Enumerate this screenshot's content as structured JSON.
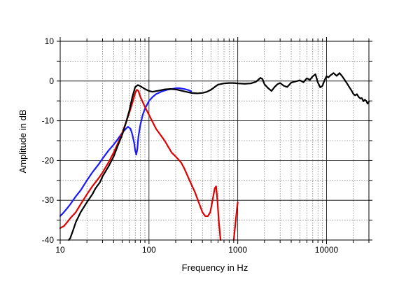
{
  "chart_data": {
    "type": "line",
    "title": "",
    "xlabel": "Frequency in Hz",
    "ylabel": "Amplitude in dB",
    "x_scale": "log",
    "xlim": [
      10,
      30000
    ],
    "ylim": [
      -40,
      10
    ],
    "grid": true,
    "legend": "none",
    "x_ticks": [
      10,
      100,
      1000,
      10000
    ],
    "x_tick_labels": [
      "10",
      "100",
      "1000",
      "10000"
    ],
    "y_ticks": [
      10,
      0,
      -10,
      -20,
      -30,
      -40
    ],
    "y_tick_labels": [
      "10",
      "0",
      "-10",
      "-20",
      "-30",
      "-40"
    ],
    "series": [
      {
        "color": "#1a1aff",
        "points": [
          [
            10,
            -34
          ],
          [
            11,
            -33
          ],
          [
            12,
            -32
          ],
          [
            13,
            -31
          ],
          [
            15,
            -29
          ],
          [
            17,
            -27.5
          ],
          [
            20,
            -25
          ],
          [
            23,
            -23
          ],
          [
            27,
            -21
          ],
          [
            30,
            -19.5
          ],
          [
            35,
            -17.5
          ],
          [
            40,
            -16
          ],
          [
            45,
            -14.5
          ],
          [
            50,
            -13
          ],
          [
            55,
            -12
          ],
          [
            58,
            -11.5
          ],
          [
            62,
            -12
          ],
          [
            65,
            -13.5
          ],
          [
            68,
            -15.5
          ],
          [
            70,
            -17.5
          ],
          [
            72,
            -18.5
          ],
          [
            74,
            -17
          ],
          [
            76,
            -14
          ],
          [
            80,
            -11
          ],
          [
            85,
            -8.5
          ],
          [
            90,
            -7
          ],
          [
            100,
            -5
          ],
          [
            110,
            -4
          ],
          [
            120,
            -3.3
          ],
          [
            140,
            -2.6
          ],
          [
            160,
            -2.2
          ],
          [
            180,
            -2
          ],
          [
            200,
            -1.8
          ],
          [
            220,
            -1.8
          ],
          [
            250,
            -2
          ],
          [
            280,
            -2.3
          ],
          [
            300,
            -2.6
          ]
        ]
      },
      {
        "color": "#e00000",
        "points": [
          [
            10,
            -37
          ],
          [
            11,
            -36.5
          ],
          [
            12,
            -35.5
          ],
          [
            13,
            -34.5
          ],
          [
            15,
            -33
          ],
          [
            17,
            -31
          ],
          [
            20,
            -28.5
          ],
          [
            23,
            -26.5
          ],
          [
            27,
            -24.5
          ],
          [
            30,
            -23
          ],
          [
            35,
            -20.5
          ],
          [
            40,
            -18
          ],
          [
            45,
            -15.5
          ],
          [
            50,
            -13
          ],
          [
            55,
            -10.5
          ],
          [
            60,
            -8
          ],
          [
            65,
            -5.5
          ],
          [
            70,
            -3
          ],
          [
            73,
            -2.2
          ],
          [
            76,
            -2.5
          ],
          [
            80,
            -4
          ],
          [
            90,
            -6.5
          ],
          [
            100,
            -8.5
          ],
          [
            120,
            -12
          ],
          [
            150,
            -15
          ],
          [
            180,
            -18
          ],
          [
            200,
            -19
          ],
          [
            230,
            -20.5
          ],
          [
            250,
            -22
          ],
          [
            280,
            -24.5
          ],
          [
            300,
            -26
          ],
          [
            330,
            -28
          ],
          [
            370,
            -31
          ],
          [
            400,
            -33
          ],
          [
            430,
            -34
          ],
          [
            460,
            -34
          ],
          [
            490,
            -33
          ],
          [
            520,
            -30
          ],
          [
            550,
            -27
          ],
          [
            570,
            -26.5
          ],
          [
            590,
            -30
          ],
          [
            610,
            -35
          ],
          [
            640,
            -40
          ]
        ]
      },
      {
        "color": "#e00000",
        "points": [
          [
            900,
            -40
          ],
          [
            940,
            -36
          ],
          [
            980,
            -32
          ],
          [
            1000,
            -30.5
          ]
        ]
      },
      {
        "color": "#000000",
        "points": [
          [
            12.5,
            -40
          ],
          [
            13,
            -39.5
          ],
          [
            14,
            -37.5
          ],
          [
            15,
            -35.5
          ],
          [
            17,
            -33
          ],
          [
            20,
            -30.5
          ],
          [
            23,
            -28.5
          ],
          [
            25,
            -27
          ],
          [
            28,
            -25.5
          ],
          [
            30,
            -24
          ],
          [
            35,
            -21.5
          ],
          [
            40,
            -19
          ],
          [
            45,
            -16
          ],
          [
            50,
            -13.5
          ],
          [
            55,
            -10.5
          ],
          [
            60,
            -7.5
          ],
          [
            65,
            -4
          ],
          [
            70,
            -1.5
          ],
          [
            75,
            -1
          ],
          [
            80,
            -1.3
          ],
          [
            90,
            -2
          ],
          [
            100,
            -2.5
          ],
          [
            110,
            -2.7
          ],
          [
            130,
            -2.4
          ],
          [
            150,
            -2.1
          ],
          [
            170,
            -2
          ],
          [
            200,
            -2.1
          ],
          [
            250,
            -2.6
          ],
          [
            300,
            -3
          ],
          [
            350,
            -3.1
          ],
          [
            400,
            -3
          ],
          [
            450,
            -2.7
          ],
          [
            500,
            -2.2
          ],
          [
            550,
            -1.5
          ],
          [
            600,
            -0.9
          ],
          [
            700,
            -0.6
          ],
          [
            800,
            -0.5
          ],
          [
            900,
            -0.5
          ],
          [
            1000,
            -0.6
          ],
          [
            1200,
            -0.7
          ],
          [
            1400,
            -0.6
          ],
          [
            1600,
            -0.2
          ],
          [
            1800,
            0.8
          ],
          [
            1900,
            0.5
          ],
          [
            2000,
            -0.8
          ],
          [
            2200,
            -1.8
          ],
          [
            2400,
            -2.5
          ],
          [
            2600,
            -1.5
          ],
          [
            2800,
            -0.8
          ],
          [
            3000,
            -0.5
          ],
          [
            3300,
            -1.2
          ],
          [
            3600,
            -1.5
          ],
          [
            4000,
            -0.4
          ],
          [
            4500,
            -0.1
          ],
          [
            5000,
            0.2
          ],
          [
            5500,
            -0.3
          ],
          [
            6000,
            0.7
          ],
          [
            6500,
            0.3
          ],
          [
            7000,
            1.2
          ],
          [
            7500,
            1.7
          ],
          [
            8000,
            -0.4
          ],
          [
            8500,
            -1.6
          ],
          [
            9000,
            -1.2
          ],
          [
            9500,
            0.2
          ],
          [
            10000,
            1.2
          ],
          [
            10500,
            0.9
          ],
          [
            11000,
            1.4
          ],
          [
            12000,
            2
          ],
          [
            13000,
            1.3
          ],
          [
            14000,
            2
          ],
          [
            15000,
            1.2
          ],
          [
            16000,
            0.3
          ],
          [
            17000,
            -0.6
          ],
          [
            18000,
            -1.5
          ],
          [
            19000,
            -2.3
          ],
          [
            20000,
            -3.2
          ],
          [
            21000,
            -3.6
          ],
          [
            22000,
            -3.3
          ],
          [
            23000,
            -4
          ],
          [
            24000,
            -4.4
          ],
          [
            25000,
            -4.3
          ],
          [
            26000,
            -5.1
          ],
          [
            27000,
            -4.7
          ],
          [
            28000,
            -5
          ],
          [
            29000,
            -5.7
          ],
          [
            30000,
            -5.2
          ]
        ]
      }
    ]
  }
}
